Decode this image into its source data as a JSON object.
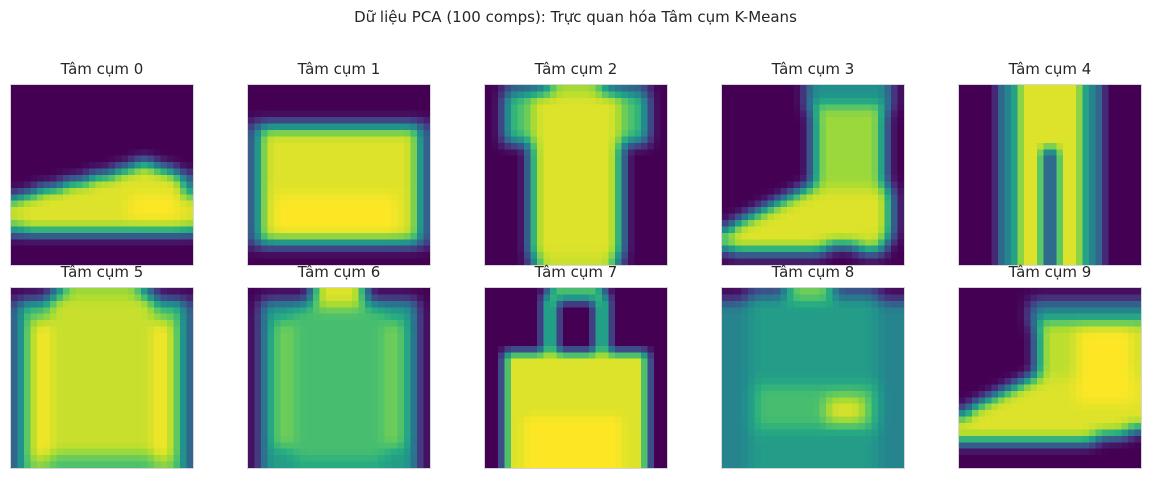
{
  "title": "Dữ liệu PCA (100 comps): Trực quan hóa Tâm cụm K-Means",
  "chart_data": {
    "type": "heatmap",
    "colormap": "viridis",
    "grid": false,
    "ticks": false,
    "image_size": [
      28,
      28
    ],
    "panels": [
      {
        "label": "Tâm cụm 0",
        "depicts": "sneaker"
      },
      {
        "label": "Tâm cụm 1",
        "depicts": "bag"
      },
      {
        "label": "Tâm cụm 2",
        "depicts": "t-shirt"
      },
      {
        "label": "Tâm cụm 3",
        "depicts": "heeled boot"
      },
      {
        "label": "Tâm cụm 4",
        "depicts": "trouser"
      },
      {
        "label": "Tâm cụm 5",
        "depicts": "pullover"
      },
      {
        "label": "Tâm cụm 6",
        "depicts": "shirt"
      },
      {
        "label": "Tâm cụm 7",
        "depicts": "handbag"
      },
      {
        "label": "Tâm cụm 8",
        "depicts": "shirt mixed"
      },
      {
        "label": "Tâm cụm 9",
        "depicts": "ankle boot"
      }
    ]
  }
}
